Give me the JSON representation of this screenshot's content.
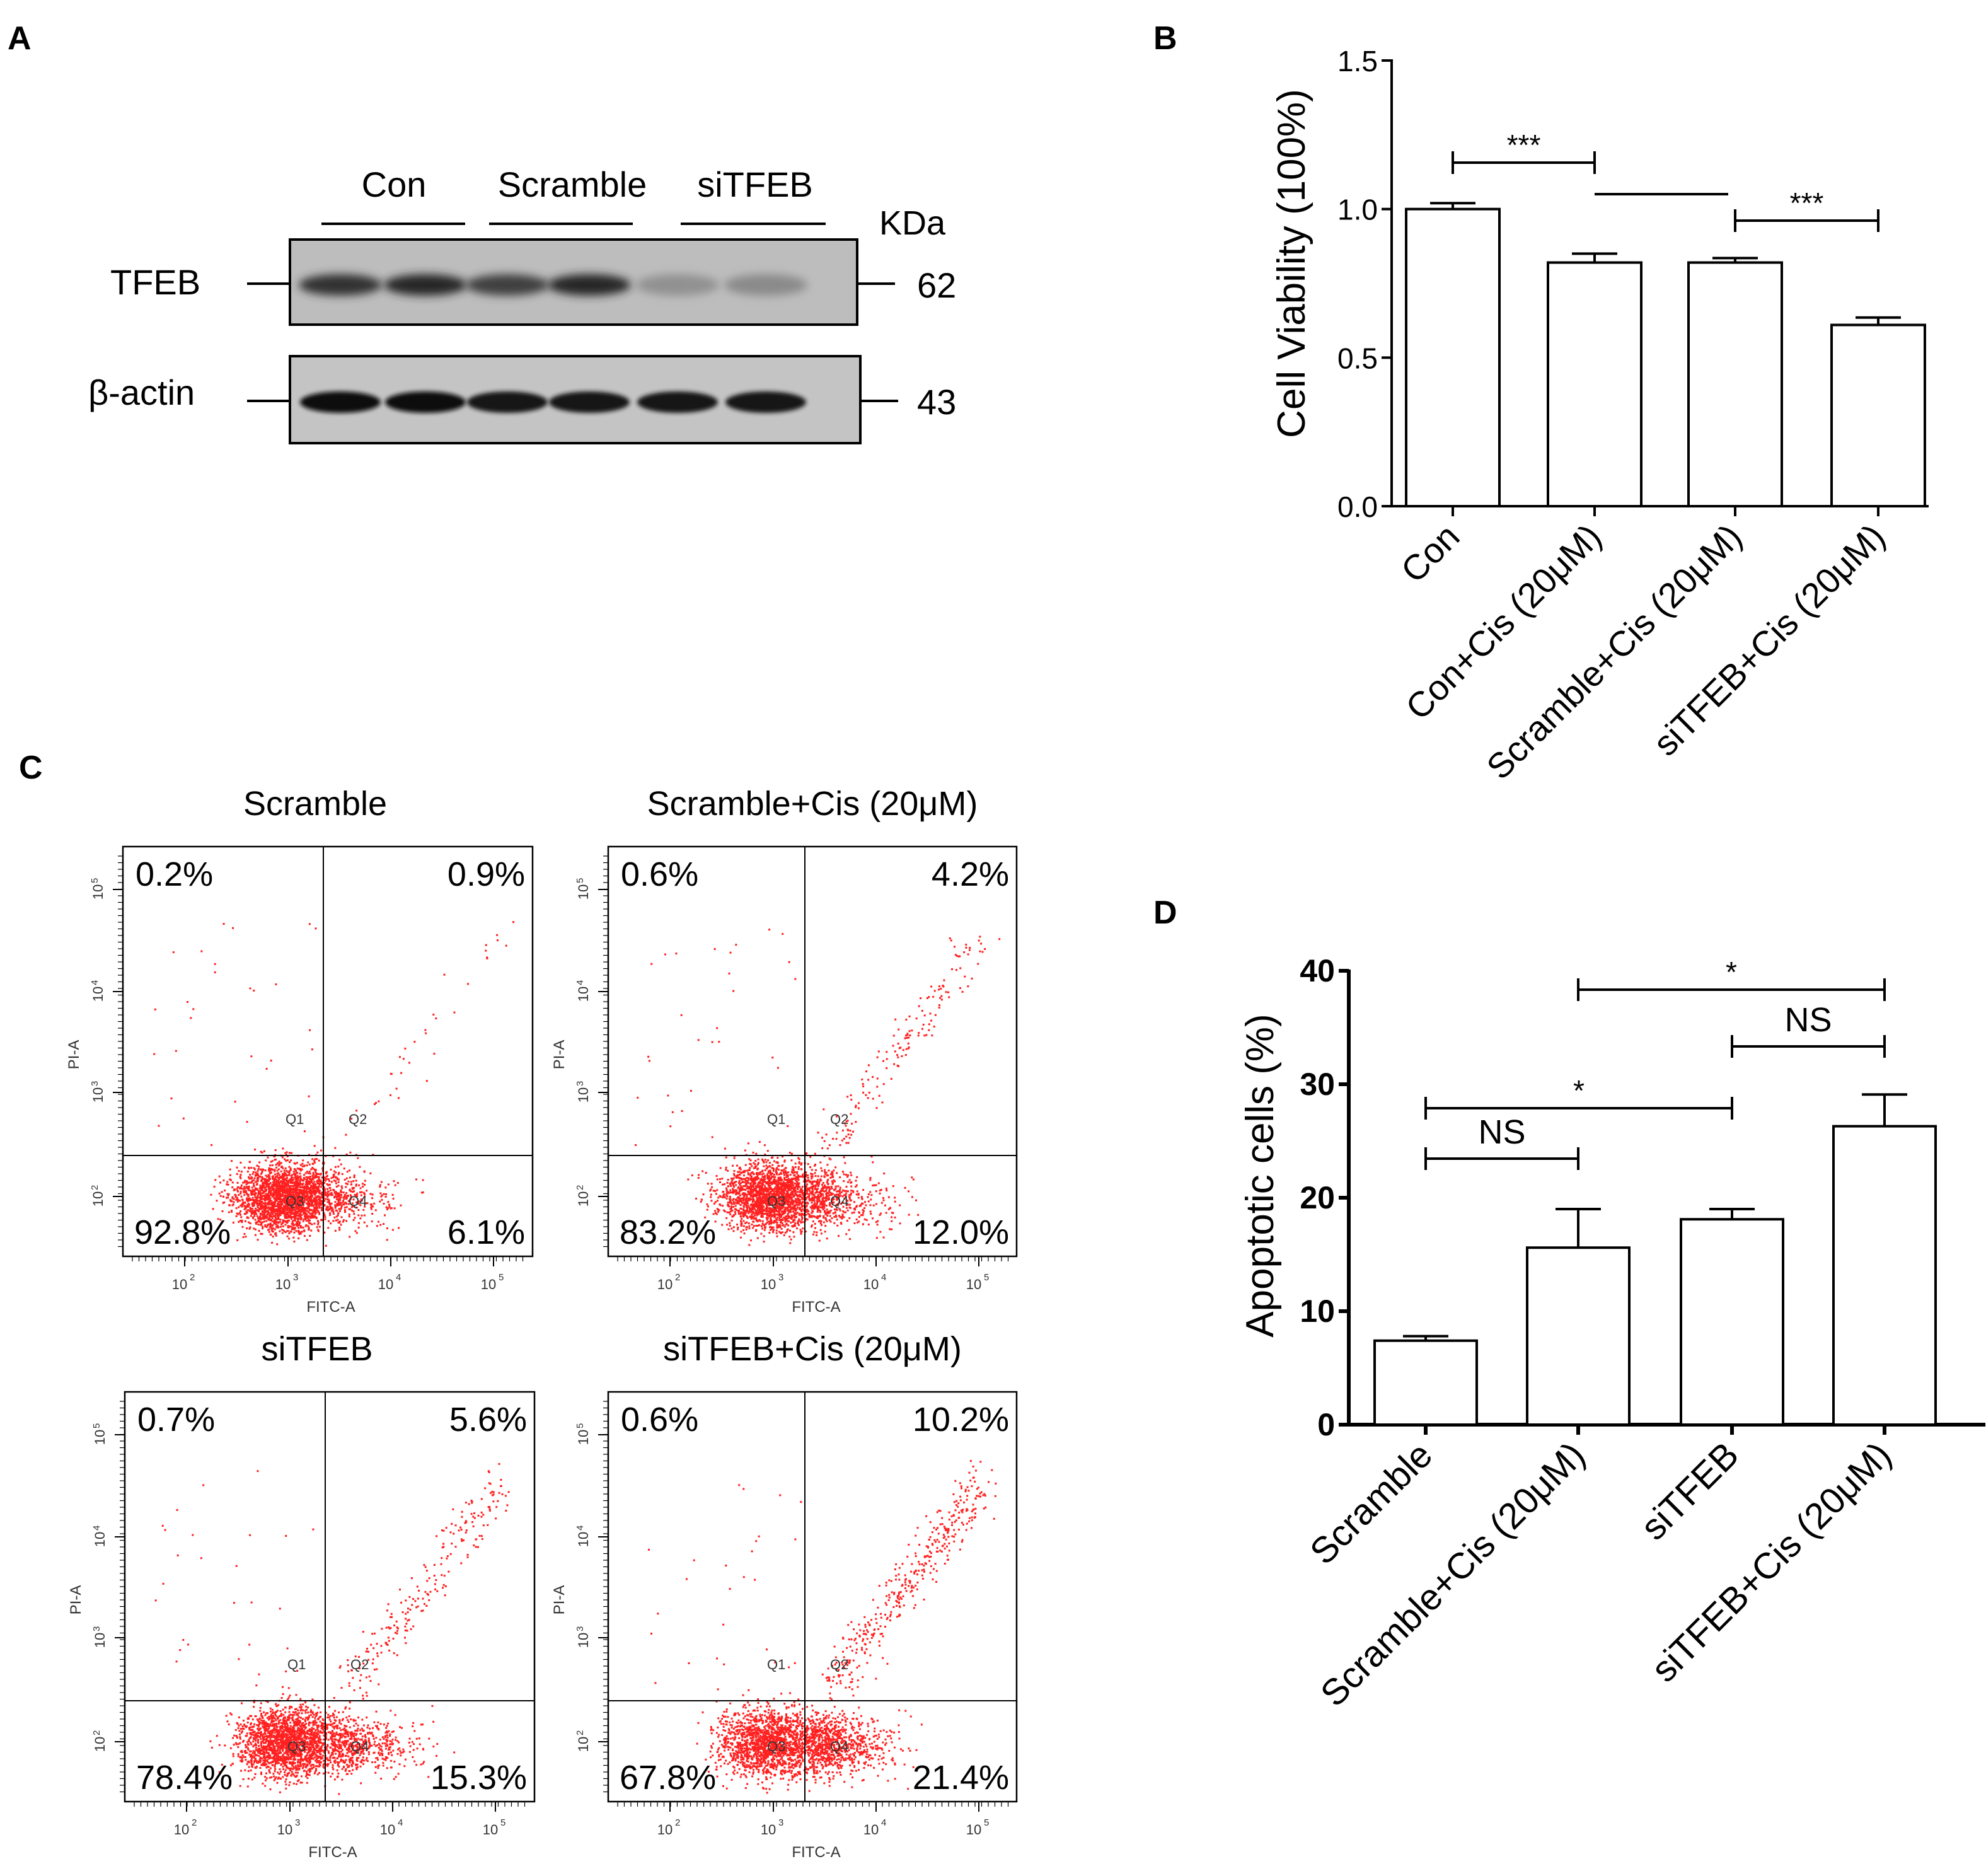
{
  "panels": {
    "a": "A",
    "b": "B",
    "c": "C",
    "d": "D"
  },
  "blot": {
    "groups": [
      "Con",
      "Scramble",
      "siTFEB"
    ],
    "kda_label": "KDa",
    "rows": [
      {
        "protein": "TFEB",
        "kda": "62",
        "lanes": [
          0.95,
          1.0,
          0.85,
          1.0,
          0.3,
          0.35
        ]
      },
      {
        "protein": "β-actin",
        "kda": "43",
        "lanes": [
          1.0,
          1.0,
          0.95,
          0.95,
          0.95,
          0.95
        ]
      }
    ]
  },
  "chart_data": [
    {
      "id": "B",
      "type": "bar",
      "title": "",
      "xlabel": "",
      "ylabel": "Cell Viability (100%)",
      "categories": [
        "Con",
        "Con+Cis (20μM)",
        "Scramble+Cis (20μM)",
        "siTFEB+Cis (20μM)"
      ],
      "values": [
        1.0,
        0.82,
        0.82,
        0.61
      ],
      "errors": [
        0.02,
        0.03,
        0.015,
        0.025
      ],
      "ylim": [
        0,
        1.5
      ],
      "yticks": [
        "0.0",
        "0.5",
        "1.0",
        "1.5"
      ],
      "ytick_values": [
        0,
        0.5,
        1.0,
        1.5
      ],
      "significance": [
        {
          "from": 0,
          "to": 1,
          "label": "***"
        },
        {
          "from": 2,
          "to": 3,
          "label": "***"
        }
      ]
    },
    {
      "id": "C",
      "type": "scatter",
      "xlabel": "FITC-A",
      "ylabel": "PI-A",
      "quadrant_labels": [
        "Q1",
        "Q2",
        "Q3",
        "Q4"
      ],
      "tick_labels": [
        "10",
        "10",
        "10",
        "10"
      ],
      "tick_exponents": [
        "2",
        "3",
        "4",
        "5"
      ],
      "plots": [
        {
          "title": "Scramble",
          "q1": "0.2%",
          "q2": "0.9%",
          "q3": "92.8%",
          "q4": "6.1%"
        },
        {
          "title": "Scramble+Cis (20μM)",
          "q1": "0.6%",
          "q2": "4.2%",
          "q3": "83.2%",
          "q4": "12.0%"
        },
        {
          "title": "siTFEB",
          "q1": "0.7%",
          "q2": "5.6%",
          "q3": "78.4%",
          "q4": "15.3%"
        },
        {
          "title": "siTFEB+Cis (20μM)",
          "q1": "0.6%",
          "q2": "10.2%",
          "q3": "67.8%",
          "q4": "21.4%"
        }
      ]
    },
    {
      "id": "D",
      "type": "bar",
      "title": "",
      "xlabel": "",
      "ylabel": "Apoptotic cells (%)",
      "categories": [
        "Scramble",
        "Scramble+Cis (20μM)",
        "siTFEB",
        "siTFEB+Cis (20μM)"
      ],
      "values": [
        7.4,
        15.6,
        18.1,
        26.3
      ],
      "errors": [
        0.4,
        3.4,
        0.9,
        2.8
      ],
      "ylim": [
        0,
        40
      ],
      "yticks": [
        "0",
        "10",
        "20",
        "30",
        "40"
      ],
      "ytick_values": [
        0,
        10,
        20,
        30,
        40
      ],
      "significance": [
        {
          "from": 0,
          "to": 1,
          "label": "NS"
        },
        {
          "from": 0,
          "to": 2,
          "label": "*"
        },
        {
          "from": 2,
          "to": 3,
          "label": "NS"
        },
        {
          "from": 1,
          "to": 3,
          "label": "*"
        }
      ]
    }
  ]
}
